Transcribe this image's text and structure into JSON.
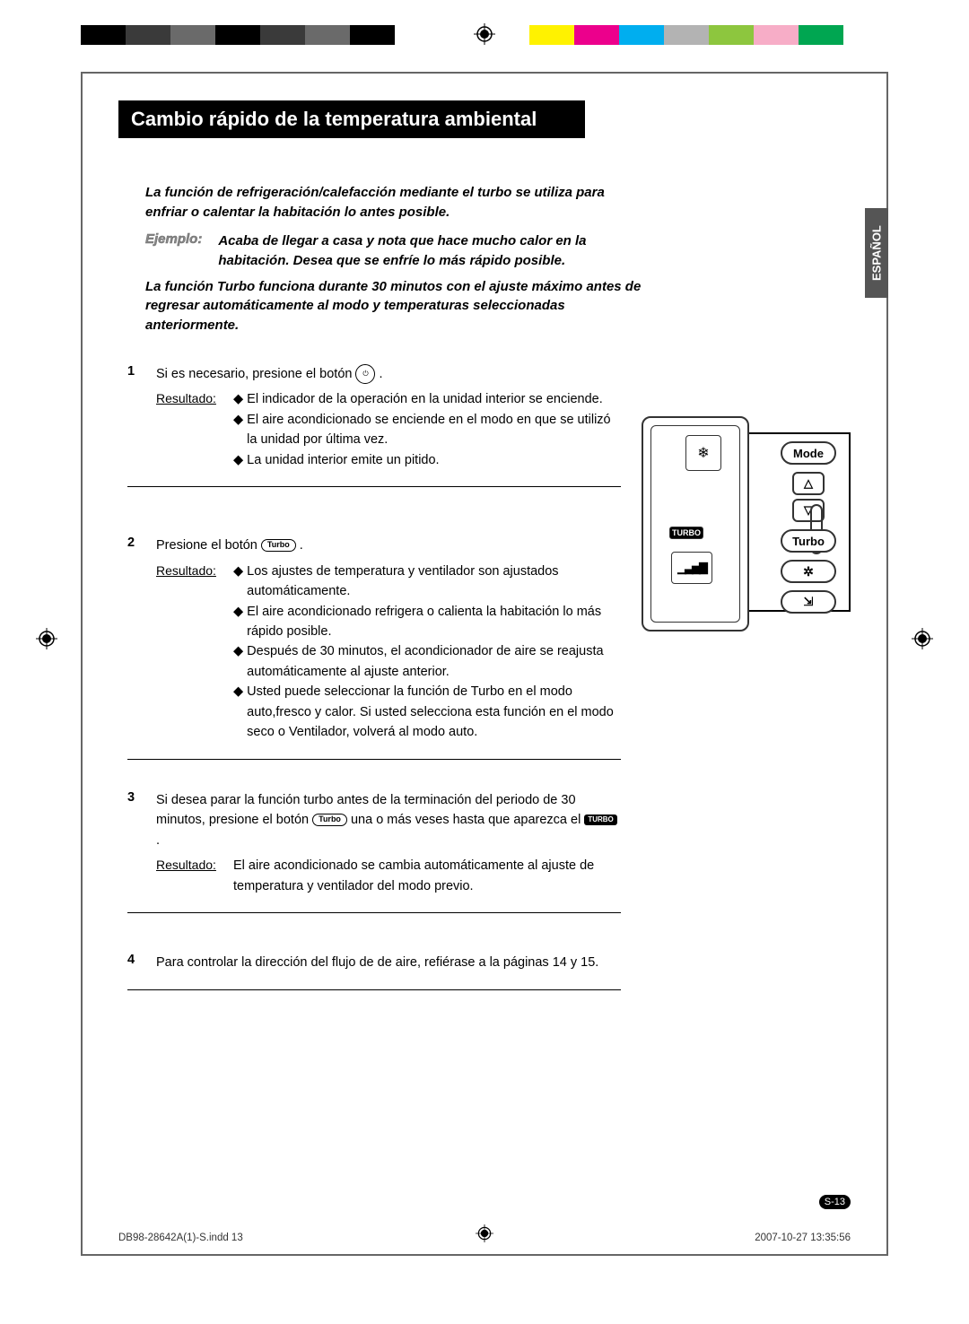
{
  "color_bar": [
    "#000000",
    "#3a3a3a",
    "#6a6a6a",
    "#000000",
    "#3a3a3a",
    "#6a6a6a",
    "#000000",
    "#ffffff",
    "#ffffff",
    "#ffffff",
    "#fff200",
    "#ec008c",
    "#00aeef",
    "#b3b3b3",
    "#8dc63e",
    "#f7adc7",
    "#00a651",
    "#ffffff"
  ],
  "title": "Cambio rápido de la temperatura ambiental",
  "intro": "La función de refrigeración/calefacción mediante el turbo se utiliza para enfriar o calentar la habitación lo antes posible.",
  "ejemplo_label": "Ejemplo:",
  "ejemplo_text": "Acaba de llegar a casa y nota que hace mucho calor en la habitación. Desea que se enfríe lo más rápido posible.",
  "turbo_note": "La función Turbo funciona durante 30 minutos con el ajuste máximo antes de regresar automáticamente al modo y temperaturas seleccionadas anteriormente.",
  "resultado_label": "Resultado:",
  "steps": [
    {
      "num": "1",
      "text_a": "Si es necesario, presione el botón ",
      "text_b": " .",
      "bullets": [
        "El indicador de la operación en la unidad interior se enciende.",
        "El aire acondicionado se enciende en el modo en que se utilizó la unidad por última vez.",
        "La unidad interior emite un pitido."
      ]
    },
    {
      "num": "2",
      "text_a": "Presione el botón ",
      "text_b": " .",
      "bullets": [
        "Los ajustes de temperatura y ventilador son ajustados automáticamente.",
        "El aire acondicionado refrigera o calienta la habitación lo más rápido posible.",
        "Después de 30 minutos, el acondicionador de aire se reajusta automáticamente al ajuste anterior.",
        "Usted puede seleccionar la función de Turbo en el modo auto,fresco y calor. Si usted selecciona esta función en el modo seco o Ventilador, volverá al modo auto."
      ]
    },
    {
      "num": "3",
      "text_a": "Si desea parar la función turbo antes de la terminación del periodo de 30 minutos, presione el botón ",
      "text_mid": " una o más veses hasta que aparezca el ",
      "text_b": " .",
      "result_plain": "El aire acondicionado se cambia automáticamente al ajuste de temperatura y ventilador del modo previo."
    },
    {
      "num": "4",
      "text_a": "Para controlar la dirección del flujo de de aire, refiérase a la páginas 14 y 15."
    }
  ],
  "lang_tab": "ESPAÑOL",
  "remote": {
    "mode": "Mode",
    "turbo": "Turbo",
    "turbo_disp": "TURBO",
    "snow": "❄",
    "up": "△",
    "down": "▽",
    "fan_icon": "❋❋",
    "signal": "▁▃▅▇",
    "swing": "⇲"
  },
  "turbo_label": "Turbo",
  "page_num": "S-13",
  "footer_left": "DB98-28642A(1)-S.indd   13",
  "footer_right": "2007-10-27   13:35:56"
}
